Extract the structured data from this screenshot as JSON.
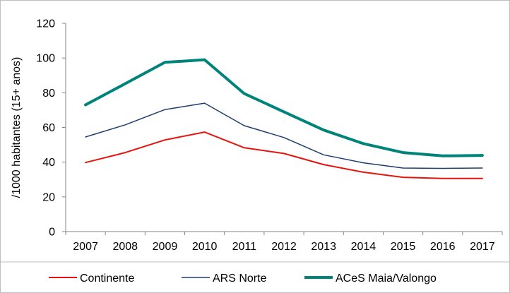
{
  "chart_data": {
    "type": "line",
    "title": "",
    "xlabel": "",
    "ylabel": "/1000 habitantes (15+ anos)",
    "ylim": [
      0,
      120
    ],
    "yticks": [
      0,
      20,
      40,
      60,
      80,
      100,
      120
    ],
    "grid": false,
    "legend_position": "bottom",
    "categories": [
      "2007",
      "2008",
      "2009",
      "2010",
      "2011",
      "2012",
      "2013",
      "2014",
      "2015",
      "2016",
      "2017"
    ],
    "series": [
      {
        "name": "Continente",
        "color": "#e8140c",
        "values": [
          39.8,
          45.5,
          52.8,
          57.3,
          48.3,
          45.0,
          38.6,
          34.2,
          31.3,
          30.6,
          30.6
        ]
      },
      {
        "name": "ARS Norte",
        "color": "#1f3d6b",
        "values": [
          54.5,
          61.5,
          70.3,
          74.0,
          61.0,
          54.2,
          44.2,
          39.6,
          36.6,
          36.4,
          36.6
        ]
      },
      {
        "name": "ACeS Maia/Valongo",
        "color": "#00847a",
        "values": [
          73.0,
          85.2,
          97.5,
          99.0,
          79.5,
          69.0,
          58.5,
          50.7,
          45.5,
          43.6,
          43.9
        ]
      }
    ]
  }
}
